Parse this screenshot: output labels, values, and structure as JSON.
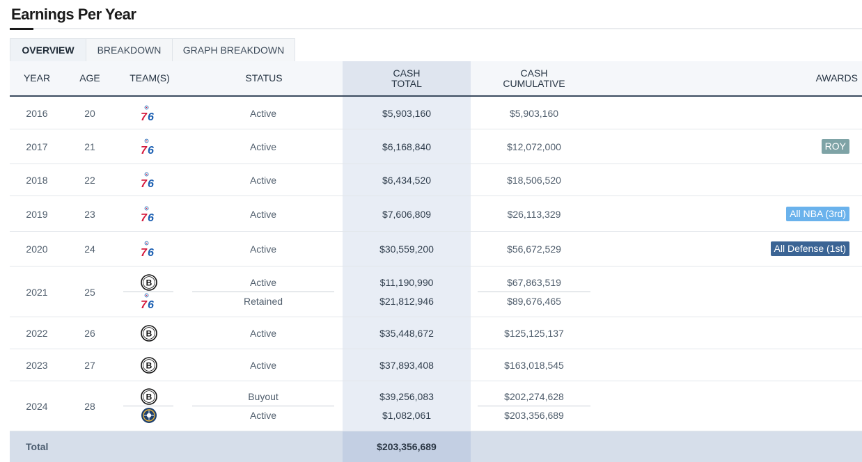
{
  "page": {
    "title": "Earnings Per Year"
  },
  "tabs": [
    {
      "label": "OVERVIEW",
      "active": true
    },
    {
      "label": "BREAKDOWN",
      "active": false
    },
    {
      "label": "GRAPH BREAKDOWN",
      "active": false
    }
  ],
  "columns": {
    "year": "YEAR",
    "age": "AGE",
    "teams": "TEAM(S)",
    "status": "STATUS",
    "cash_total_1": "CASH",
    "cash_total_2": "TOTAL",
    "cash_cum_1": "CASH",
    "cash_cum_2": "CUMULATIVE",
    "awards": "AWARDS"
  },
  "rows": [
    {
      "year": "2016",
      "age": "20",
      "teams": [
        "76ers-logo"
      ],
      "status": [
        "Active"
      ],
      "cash": [
        "$5,903,160"
      ],
      "cumulative": [
        "$5,903,160"
      ],
      "award": ""
    },
    {
      "year": "2017",
      "age": "21",
      "teams": [
        "76ers-logo"
      ],
      "status": [
        "Active"
      ],
      "cash": [
        "$6,168,840"
      ],
      "cumulative": [
        "$12,072,000"
      ],
      "award": "ROY"
    },
    {
      "year": "2018",
      "age": "22",
      "teams": [
        "76ers-logo"
      ],
      "status": [
        "Active"
      ],
      "cash": [
        "$6,434,520"
      ],
      "cumulative": [
        "$18,506,520"
      ],
      "award": ""
    },
    {
      "year": "2019",
      "age": "23",
      "teams": [
        "76ers-logo"
      ],
      "status": [
        "Active"
      ],
      "cash": [
        "$7,606,809"
      ],
      "cumulative": [
        "$26,113,329"
      ],
      "award": "All NBA (3rd)"
    },
    {
      "year": "2020",
      "age": "24",
      "teams": [
        "76ers-logo"
      ],
      "status": [
        "Active"
      ],
      "cash": [
        "$30,559,200"
      ],
      "cumulative": [
        "$56,672,529"
      ],
      "award": "All Defense (1st)"
    },
    {
      "year": "2021",
      "age": "25",
      "teams": [
        "nets-logo",
        "76ers-logo"
      ],
      "status": [
        "Active",
        "Retained"
      ],
      "cash": [
        "$11,190,990",
        "$21,812,946"
      ],
      "cumulative": [
        "$67,863,519",
        "$89,676,465"
      ],
      "award": ""
    },
    {
      "year": "2022",
      "age": "26",
      "teams": [
        "nets-logo"
      ],
      "status": [
        "Active"
      ],
      "cash": [
        "$35,448,672"
      ],
      "cumulative": [
        "$125,125,137"
      ],
      "award": ""
    },
    {
      "year": "2023",
      "age": "27",
      "teams": [
        "nets-logo"
      ],
      "status": [
        "Active"
      ],
      "cash": [
        "$37,893,408"
      ],
      "cumulative": [
        "$163,018,545"
      ],
      "award": ""
    },
    {
      "year": "2024",
      "age": "28",
      "teams": [
        "nets-logo",
        "nuggets-logo"
      ],
      "status": [
        "Buyout",
        "Active"
      ],
      "cash": [
        "$39,256,083",
        "$1,082,061"
      ],
      "cumulative": [
        "$202,274,628",
        "$203,356,689"
      ],
      "award": ""
    }
  ],
  "total": {
    "label": "Total",
    "value": "$203,356,689"
  },
  "colors": {
    "award_roy": "#7ea3a6",
    "award_all_nba": "#6ab2ec",
    "award_all_defense": "#3b6494"
  }
}
